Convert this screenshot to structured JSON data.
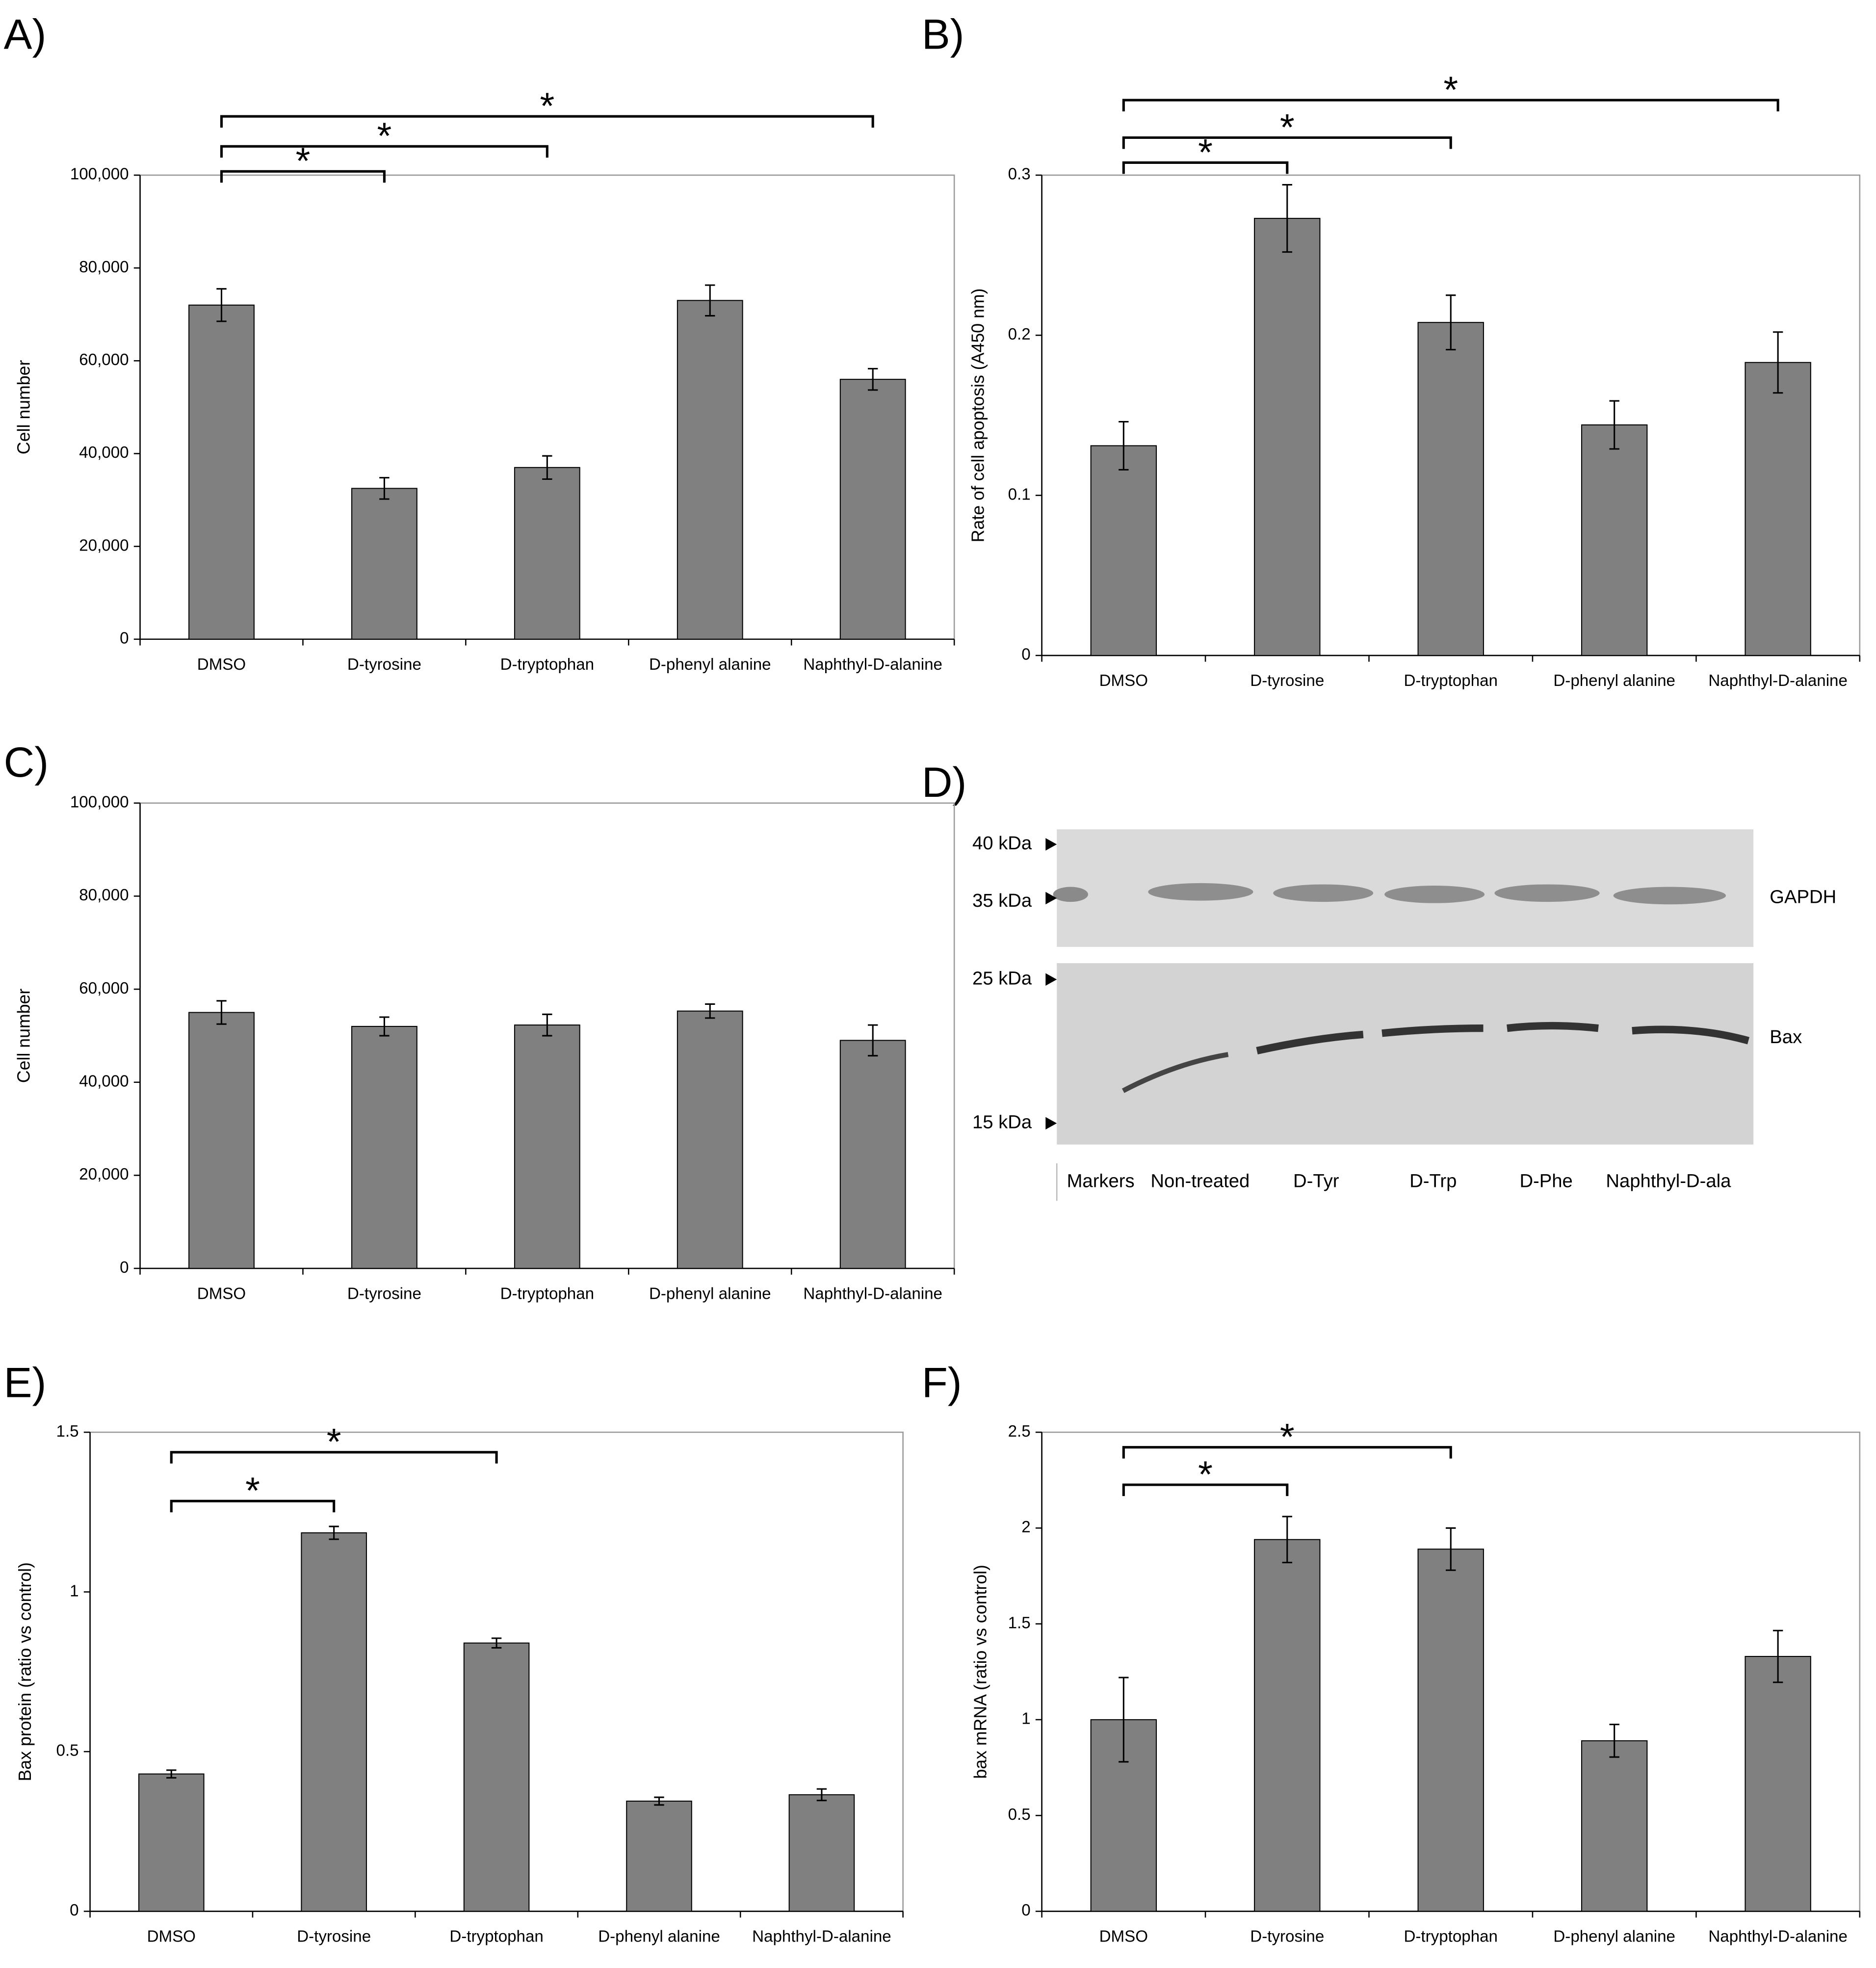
{
  "chart_data": [
    {
      "type": "bar",
      "label": "A)",
      "y_label": "Cell number",
      "categories": [
        "DMSO",
        "D-tyrosine",
        "D-tryptophan",
        "D-phenyl alanine",
        "Naphthyl-D-alanine"
      ],
      "values": [
        72000,
        32500,
        37000,
        73000,
        56000
      ],
      "errors": [
        3500,
        2300,
        2500,
        3300,
        2300
      ],
      "color": "#808080",
      "ylim": [
        0,
        100000
      ],
      "yticks": [
        0,
        {
          "value": 20000,
          "label": "20,000"
        },
        {
          "value": 40000,
          "label": "40,000"
        },
        {
          "value": 60000,
          "label": "60,000"
        },
        {
          "value": 80000,
          "label": "80,000"
        },
        {
          "value": 100000,
          "label": "100,000"
        }
      ],
      "annotations": [
        {
          "between": [
            "DMSO",
            "D-tyrosine"
          ],
          "text": "*"
        },
        {
          "between": [
            "DMSO",
            "D-tryptophan"
          ],
          "text": "*"
        },
        {
          "between": [
            "DMSO",
            "Naphthyl-D-alanine"
          ],
          "text": "*"
        }
      ]
    },
    {
      "type": "bar",
      "label": "B)",
      "y_label": "Rate of cell apoptosis (A450 nm)",
      "categories": [
        "DMSO",
        "D-tyrosine",
        "D-tryptophan",
        "D-phenyl alanine",
        "Naphthyl-D-alanine"
      ],
      "values": [
        0.131,
        0.273,
        0.208,
        0.144,
        0.183
      ],
      "errors": [
        0.015,
        0.021,
        0.017,
        0.015,
        0.019
      ],
      "color": "#808080",
      "ylim": [
        0,
        0.3
      ],
      "yticks": [
        0,
        0.1,
        0.2,
        0.3
      ],
      "annotations": [
        {
          "between": [
            "DMSO",
            "D-tyrosine"
          ],
          "text": "*"
        },
        {
          "between": [
            "DMSO",
            "D-tryptophan"
          ],
          "text": "*"
        },
        {
          "between": [
            "DMSO",
            "Naphthyl-D-alanine"
          ],
          "text": "*"
        }
      ]
    },
    {
      "type": "bar",
      "label": "C)",
      "y_label": "Cell number",
      "categories": [
        "DMSO",
        "D-tyrosine",
        "D-tryptophan",
        "D-phenyl alanine",
        "Naphthyl-D-alanine"
      ],
      "values": [
        55000,
        52000,
        52300,
        55300,
        49000
      ],
      "errors": [
        2500,
        2000,
        2300,
        1500,
        3300
      ],
      "color": "#808080",
      "ylim": [
        0,
        100000
      ],
      "yticks": [
        0,
        {
          "value": 20000,
          "label": "20,000"
        },
        {
          "value": 40000,
          "label": "40,000"
        },
        {
          "value": 60000,
          "label": "60,000"
        },
        {
          "value": 80000,
          "label": "80,000"
        },
        {
          "value": 100000,
          "label": "100,000"
        }
      ],
      "annotations": []
    },
    {
      "type": "bar",
      "label": "E)",
      "y_label": "Bax protein (ratio vs control)",
      "categories": [
        "DMSO",
        "D-tyrosine",
        "D-tryptophan",
        "D-phenyl alanine",
        "Naphthyl-D-alanine"
      ],
      "values": [
        0.43,
        1.185,
        0.84,
        0.345,
        0.365
      ],
      "errors": [
        0.012,
        0.02,
        0.015,
        0.012,
        0.018
      ],
      "color": "#808080",
      "ylim": [
        0,
        1.5
      ],
      "yticks": [
        0,
        0.5,
        1,
        1.5
      ],
      "annotations": [
        {
          "between": [
            "DMSO",
            "D-tyrosine"
          ],
          "text": "*"
        },
        {
          "between": [
            "DMSO",
            "D-tryptophan"
          ],
          "text": "*"
        }
      ]
    },
    {
      "type": "bar",
      "label": "F)",
      "y_label": "bax mRNA (ratio vs control)",
      "categories": [
        "DMSO",
        "D-tyrosine",
        "D-tryptophan",
        "D-phenyl alanine",
        "Naphthyl-D-alanine"
      ],
      "values": [
        1.0,
        1.94,
        1.89,
        0.89,
        1.33
      ],
      "errors": [
        0.22,
        0.12,
        0.11,
        0.085,
        0.135
      ],
      "color": "#808080",
      "ylim": [
        0,
        2.5
      ],
      "yticks": [
        0,
        0.5,
        1,
        1.5,
        2,
        2.5
      ],
      "annotations": [
        {
          "between": [
            "DMSO",
            "D-tyrosine"
          ],
          "text": "*"
        },
        {
          "between": [
            "DMSO",
            "D-tryptophan"
          ],
          "text": "*"
        }
      ]
    }
  ],
  "blot": {
    "label": "D)",
    "markers": [
      "40 kDa",
      "35 kDa",
      "25 kDa",
      "15 kDa"
    ],
    "proteins": [
      "GAPDH",
      "Bax"
    ],
    "lanes": [
      "Markers",
      "Non-treated",
      "D-Tyr",
      "D-Trp",
      "D-Phe",
      "Naphthyl-D-ala"
    ]
  }
}
